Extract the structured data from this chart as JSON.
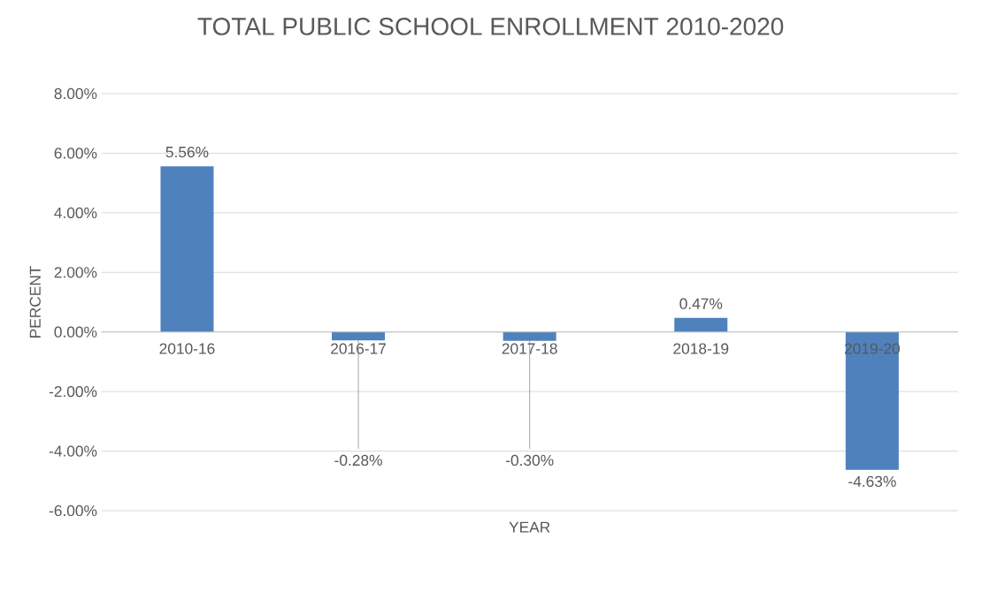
{
  "chart_data": {
    "type": "bar",
    "title": "TOTAL PUBLIC SCHOOL ENROLLMENT 2010-2020",
    "xlabel": "YEAR",
    "ylabel": "PERCENT",
    "categories": [
      "2010-16",
      "2016-17",
      "2017-18",
      "2018-19",
      "2019-20"
    ],
    "values": [
      5.56,
      -0.28,
      -0.3,
      0.47,
      -4.63
    ],
    "value_labels": [
      "5.56%",
      "-0.28%",
      "-0.30%",
      "0.47%",
      "-4.63%"
    ],
    "color": "#4f81bd",
    "ylim": [
      -6,
      8
    ],
    "yticks": [
      {
        "value": -6,
        "label": "-6.00%"
      },
      {
        "value": -4,
        "label": "-4.00%"
      },
      {
        "value": -2,
        "label": "-2.00%"
      },
      {
        "value": 0,
        "label": "0.00%"
      },
      {
        "value": 2,
        "label": "2.00%"
      },
      {
        "value": 4,
        "label": "4.00%"
      },
      {
        "value": 6,
        "label": "6.00%"
      },
      {
        "value": 8,
        "label": "8.00%"
      }
    ],
    "grid": "y"
  }
}
